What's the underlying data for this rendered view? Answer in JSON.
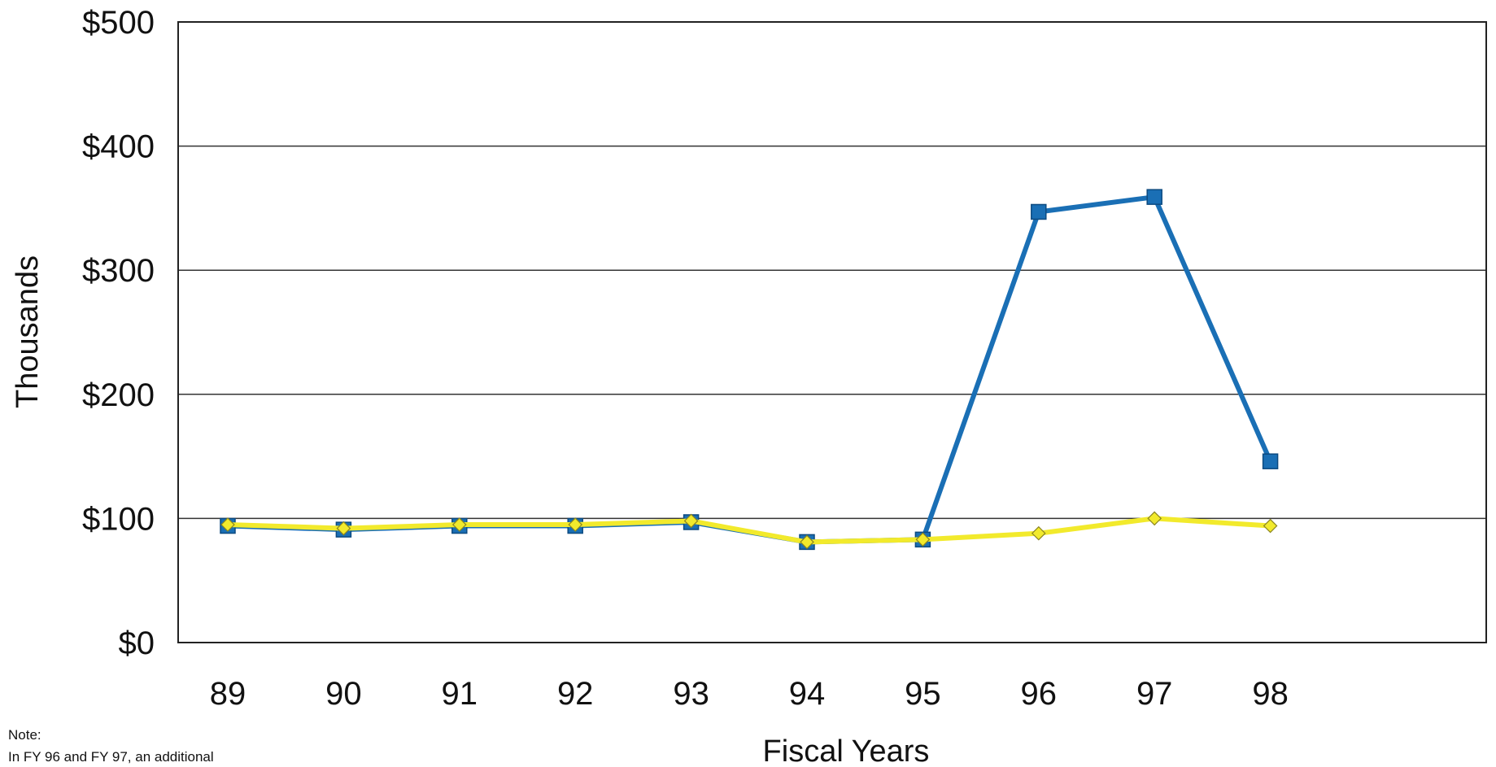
{
  "note": {
    "heading": "Note:",
    "text": "In FY 96 and FY 97, an additional"
  },
  "chart_data": {
    "type": "line",
    "title": "",
    "xlabel": "Fiscal Years",
    "ylabel": "Thousands",
    "x": [
      "89",
      "90",
      "91",
      "92",
      "93",
      "94",
      "95",
      "96",
      "97",
      "98"
    ],
    "ylim": [
      0,
      500
    ],
    "yticks": [
      0,
      100,
      200,
      300,
      400,
      500
    ],
    "ytick_labels": [
      "$0",
      "$100",
      "$200",
      "$300",
      "$400",
      "$500"
    ],
    "grid": true,
    "legend": "none",
    "series": [
      {
        "color": "#1a6fb5",
        "marker": "square",
        "values": [
          94,
          91,
          94,
          94,
          97,
          81,
          83,
          347,
          359,
          146
        ]
      },
      {
        "color": "#f2ea2c",
        "marker": "diamond",
        "values": [
          95,
          92,
          95,
          95,
          98,
          81,
          83,
          88,
          100,
          94
        ]
      }
    ]
  }
}
